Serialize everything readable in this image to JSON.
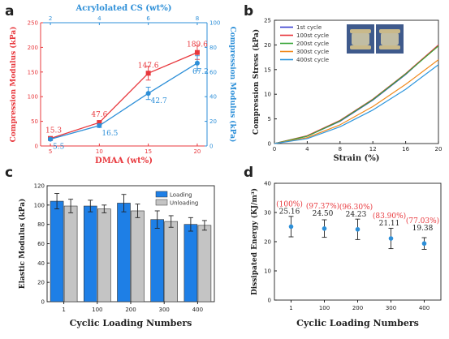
{
  "panel_letters": [
    "a",
    "b",
    "c",
    "d"
  ],
  "colors": {
    "red": "#e8383d",
    "blue": "#2d8fd8",
    "c_loading": "#1e7fe6",
    "c_unloading": "#c4c4c4"
  },
  "chart_data": [
    {
      "panel": "a",
      "type": "line",
      "xlabel": "DMAA (wt%)",
      "x2label": "Acrylolated CS (wt%)",
      "ylabel": "Compression Modulus (kPa)",
      "y2label": "Compression Modulus (kPa)",
      "xlim": [
        4,
        21
      ],
      "xticks": [
        5,
        10,
        15,
        20
      ],
      "x2ticks": [
        2,
        4,
        6,
        8
      ],
      "ylim": [
        0,
        250
      ],
      "yticks": [
        0,
        50,
        100,
        150,
        200,
        250
      ],
      "y2lim": [
        0,
        100
      ],
      "y2ticks": [
        0,
        20,
        40,
        60,
        80,
        100
      ],
      "series": [
        {
          "axis": "left",
          "color": "#e8383d",
          "x": [
            5,
            10,
            15,
            20
          ],
          "y": [
            15.3,
            47.6,
            147.6,
            189.6
          ],
          "err": [
            3,
            3,
            14,
            14
          ],
          "labels": [
            "15.3",
            "47.6",
            "147.6",
            "189.6"
          ]
        },
        {
          "axis": "right",
          "color": "#2d8fd8",
          "x": [
            5,
            10,
            15,
            20
          ],
          "y": [
            5.5,
            16.5,
            42.7,
            67.2
          ],
          "err": [
            1,
            1.5,
            5,
            6
          ],
          "labels": [
            "5.5",
            "16.5",
            "42.7",
            "67.2"
          ]
        }
      ]
    },
    {
      "panel": "b",
      "type": "line",
      "xlabel": "Strain (%)",
      "ylabel": "Compression Stress (kPa)",
      "xlim": [
        0,
        20
      ],
      "xticks": [
        0,
        4,
        8,
        12,
        16,
        20
      ],
      "ylim": [
        0,
        25
      ],
      "yticks": [
        0,
        5,
        10,
        15,
        20,
        25
      ],
      "legend_position": "top-left",
      "series": [
        {
          "name": "1st cycle",
          "color": "#3a3fd0",
          "x": [
            0,
            4,
            8,
            12,
            16,
            20
          ],
          "y": [
            0,
            1.5,
            4.5,
            8.8,
            14,
            20
          ]
        },
        {
          "name": "100st cycle",
          "color": "#e8343a",
          "x": [
            0,
            4,
            8,
            12,
            16,
            20
          ],
          "y": [
            0,
            1.6,
            4.7,
            9,
            14.2,
            20
          ]
        },
        {
          "name": "200st cycle",
          "color": "#3aa63a",
          "x": [
            0,
            4,
            8,
            12,
            16,
            20
          ],
          "y": [
            0,
            1.5,
            4.6,
            8.9,
            14.1,
            19.8
          ]
        },
        {
          "name": "300st cycle",
          "color": "#f08a1e",
          "x": [
            0,
            4,
            8,
            12,
            16,
            20
          ],
          "y": [
            0,
            1.2,
            3.8,
            7.5,
            12,
            17
          ]
        },
        {
          "name": "400st cycle",
          "color": "#2e96dc",
          "x": [
            0,
            4,
            8,
            12,
            16,
            20
          ],
          "y": [
            0,
            1.0,
            3.4,
            6.8,
            11,
            16
          ]
        }
      ]
    },
    {
      "panel": "c",
      "type": "bar",
      "xlabel": "Cyclic Loading Numbers",
      "ylabel": "Elastic Modulus (kPa)",
      "categories": [
        "1",
        "100",
        "200",
        "300",
        "400"
      ],
      "ylim": [
        0,
        120
      ],
      "yticks": [
        0,
        20,
        40,
        60,
        80,
        100,
        120
      ],
      "legend_position": "top-right",
      "series": [
        {
          "name": "Loading",
          "color": "#1e7fe6",
          "values": [
            104,
            99,
            102,
            85,
            80
          ],
          "err": [
            8,
            6,
            9,
            9,
            7
          ]
        },
        {
          "name": "Unloading",
          "color": "#c4c4c4",
          "values": [
            99,
            96,
            94,
            83,
            79
          ],
          "err": [
            7,
            4,
            7,
            6,
            5
          ]
        }
      ]
    },
    {
      "panel": "d",
      "type": "scatter",
      "xlabel": "Cyclic Loading Numbers",
      "ylabel": "Dissipated Energy (KJ/m³)",
      "categories": [
        "1",
        "100",
        "200",
        "300",
        "400"
      ],
      "ylim": [
        0,
        40
      ],
      "yticks": [
        0,
        10,
        20,
        30,
        40
      ],
      "series": [
        {
          "color": "#2d8fd8",
          "values": [
            25.16,
            24.5,
            24.23,
            21.11,
            19.38
          ],
          "err": [
            3.5,
            3,
            3.5,
            3.5,
            2
          ],
          "labels": [
            "25.16",
            "24.50",
            "24.23",
            "21.11",
            "19.38"
          ],
          "percent_labels": [
            "(100%)",
            "(97.37%)",
            "(96.30%)",
            "(83.90%)",
            "(77.03%)"
          ]
        }
      ]
    }
  ]
}
